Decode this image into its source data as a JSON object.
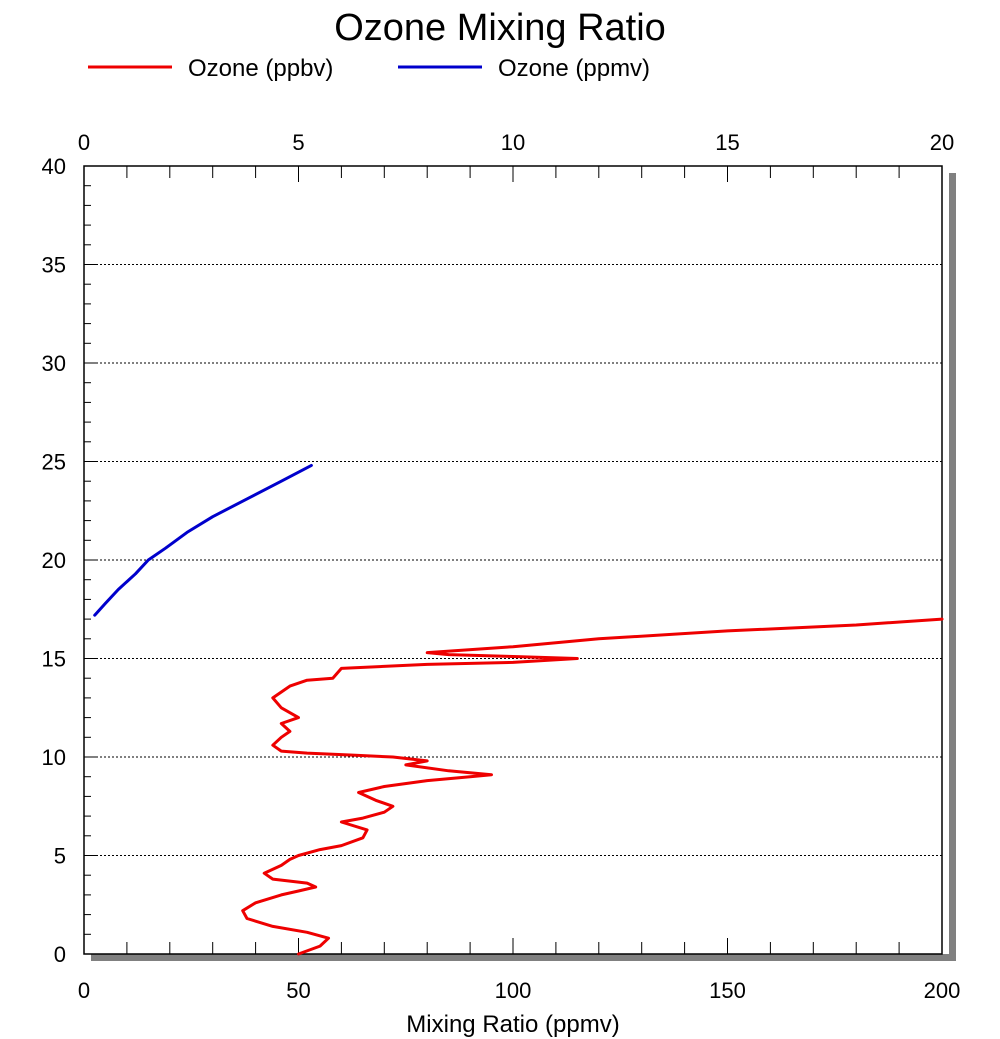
{
  "chart_data": {
    "type": "line",
    "title": "Ozone Mixing Ratio",
    "xlabel": "Mixing Ratio (ppmv)",
    "ylabel": "",
    "legend_position": "top",
    "grid": "horizontal dotted",
    "colors": {
      "ppbv": "#ee0000",
      "ppmv": "#0000cc",
      "shadow": "#808080"
    },
    "x_bottom": {
      "lim": [
        0,
        200
      ],
      "ticks": [
        "0",
        "50",
        "100",
        "150",
        "200"
      ]
    },
    "x_top": {
      "lim": [
        0,
        20
      ],
      "ticks": [
        "0",
        "5",
        "10",
        "15",
        "20"
      ]
    },
    "y": {
      "lim": [
        0,
        40
      ],
      "ticks": [
        "0",
        "5",
        "10",
        "15",
        "20",
        "25",
        "30",
        "35",
        "40"
      ]
    },
    "series": [
      {
        "name": "Ozone (ppbv)",
        "axis": "bottom",
        "x": [
          50,
          55,
          57,
          52,
          44,
          38,
          37,
          40,
          46,
          50,
          54,
          52,
          44,
          42,
          46,
          48,
          50,
          55,
          60,
          65,
          66,
          60,
          65,
          70,
          72,
          68,
          64,
          70,
          80,
          90,
          95,
          85,
          75,
          80,
          72,
          62,
          52,
          46,
          44,
          46,
          48,
          46,
          50,
          46,
          44,
          48,
          52,
          58,
          60,
          80,
          100,
          115,
          100,
          85,
          80,
          100,
          120,
          150,
          180,
          200
        ],
        "y": [
          0.0,
          0.4,
          0.8,
          1.1,
          1.4,
          1.8,
          2.2,
          2.6,
          3.0,
          3.2,
          3.4,
          3.6,
          3.8,
          4.1,
          4.5,
          4.8,
          5.0,
          5.3,
          5.5,
          5.9,
          6.3,
          6.7,
          6.9,
          7.2,
          7.5,
          7.8,
          8.2,
          8.5,
          8.8,
          9.0,
          9.1,
          9.3,
          9.6,
          9.8,
          10.0,
          10.1,
          10.2,
          10.3,
          10.6,
          11.0,
          11.3,
          11.7,
          12.0,
          12.5,
          13.0,
          13.6,
          13.9,
          14.0,
          14.5,
          14.7,
          14.8,
          15.0,
          15.1,
          15.2,
          15.3,
          15.6,
          16.0,
          16.4,
          16.7,
          17.0
        ]
      },
      {
        "name": "Ozone (ppmv)",
        "axis": "top",
        "x": [
          0.25,
          0.5,
          0.8,
          1.2,
          1.5,
          1.9,
          2.4,
          3.0,
          3.8,
          4.6,
          5.3
        ],
        "y": [
          17.2,
          17.8,
          18.5,
          19.3,
          20.0,
          20.6,
          21.4,
          22.2,
          23.1,
          24.0,
          24.8
        ]
      }
    ]
  }
}
